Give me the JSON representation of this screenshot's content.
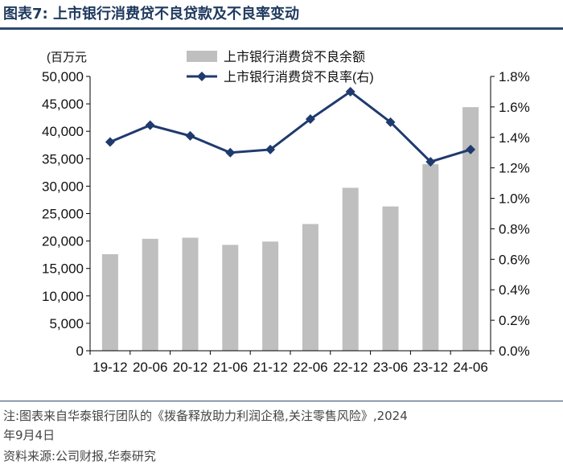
{
  "figure": {
    "title": "图表7:  上市银行消费贷不良贷款及不良率变动",
    "note_line1": "注:图表来自华泰银行团队的《拨备释放助力利润企稳,关注零售风险》,2024",
    "note_line2": "年9月4日",
    "source": "资料来源:公司财报,华泰研究"
  },
  "chart_data": {
    "type": "bar",
    "categories": [
      "19-12",
      "20-06",
      "20-12",
      "21-06",
      "21-12",
      "22-06",
      "22-12",
      "23-06",
      "23-12",
      "24-06"
    ],
    "series": [
      {
        "name": "上市银行消费贷不良余额",
        "type": "bar",
        "axis": "left",
        "values": [
          17600,
          20400,
          20600,
          19300,
          19900,
          23100,
          29700,
          26300,
          34000,
          44400
        ]
      },
      {
        "name": "上市银行消费贷不良率(右)",
        "type": "line",
        "axis": "right",
        "values": [
          1.37,
          1.48,
          1.41,
          1.3,
          1.32,
          1.52,
          1.7,
          1.5,
          1.24,
          1.32
        ]
      }
    ],
    "y_left": {
      "unit_label": "(百万元",
      "min": 0,
      "max": 50000,
      "step": 5000,
      "ticks": [
        "0",
        "5,000",
        "10,000",
        "15,000",
        "20,000",
        "25,000",
        "30,000",
        "35,000",
        "40,000",
        "45,000",
        "50,000"
      ]
    },
    "y_right": {
      "min": 0,
      "max": 1.8,
      "step": 0.2,
      "ticks": [
        "0.0%",
        "0.2%",
        "0.4%",
        "0.6%",
        "0.8%",
        "1.0%",
        "1.2%",
        "1.4%",
        "1.6%",
        "1.8%"
      ]
    },
    "grid": false,
    "legend_position": "top-center",
    "colors": {
      "bar": "#bfbfbf",
      "line": "#1f3a6e",
      "axis": "#000000"
    }
  }
}
